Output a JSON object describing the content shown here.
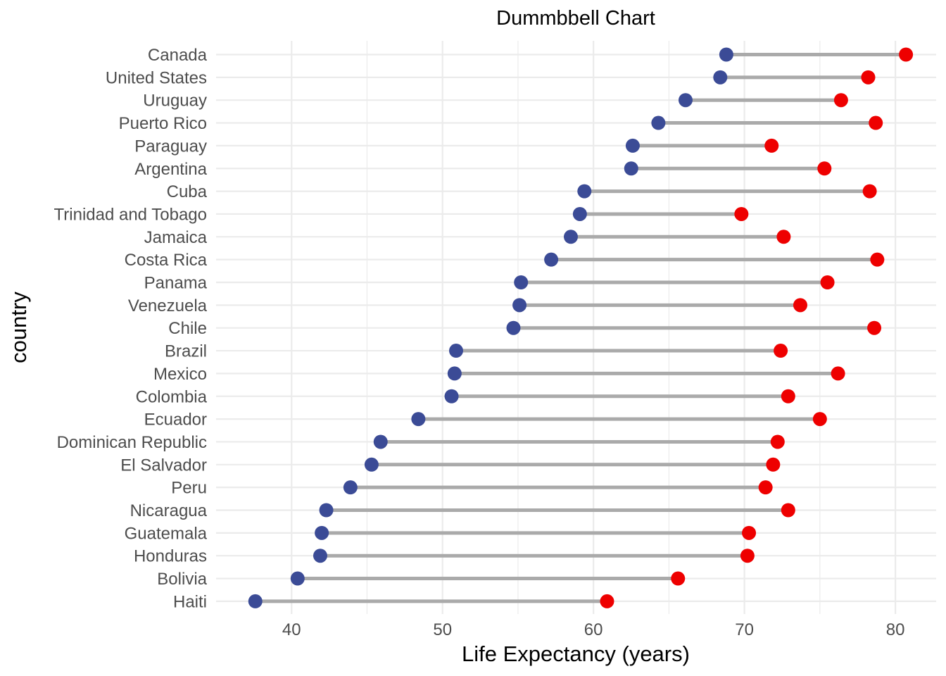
{
  "chart_data": {
    "type": "dumbbell",
    "title": "Dummbbell Chart",
    "xlabel": "Life Expectancy (years)",
    "ylabel": "country",
    "xlim": [
      35,
      82.7
    ],
    "x_ticks": [
      40,
      50,
      60,
      70,
      80
    ],
    "grid": true,
    "colors": {
      "start": "#3b4b96",
      "end": "#ee0000",
      "segment": "#aaaaaa",
      "grid": "#ebebeb"
    },
    "countries": [
      {
        "name": "Canada",
        "start": 68.8,
        "end": 80.7
      },
      {
        "name": "United States",
        "start": 68.4,
        "end": 78.2
      },
      {
        "name": "Uruguay",
        "start": 66.1,
        "end": 76.4
      },
      {
        "name": "Puerto Rico",
        "start": 64.3,
        "end": 78.7
      },
      {
        "name": "Paraguay",
        "start": 62.6,
        "end": 71.8
      },
      {
        "name": "Argentina",
        "start": 62.5,
        "end": 75.3
      },
      {
        "name": "Cuba",
        "start": 59.4,
        "end": 78.3
      },
      {
        "name": "Trinidad and Tobago",
        "start": 59.1,
        "end": 69.8
      },
      {
        "name": "Jamaica",
        "start": 58.5,
        "end": 72.6
      },
      {
        "name": "Costa Rica",
        "start": 57.2,
        "end": 78.8
      },
      {
        "name": "Panama",
        "start": 55.2,
        "end": 75.5
      },
      {
        "name": "Venezuela",
        "start": 55.1,
        "end": 73.7
      },
      {
        "name": "Chile",
        "start": 54.7,
        "end": 78.6
      },
      {
        "name": "Brazil",
        "start": 50.9,
        "end": 72.4
      },
      {
        "name": "Mexico",
        "start": 50.8,
        "end": 76.2
      },
      {
        "name": "Colombia",
        "start": 50.6,
        "end": 72.9
      },
      {
        "name": "Ecuador",
        "start": 48.4,
        "end": 75.0
      },
      {
        "name": "Dominican Republic",
        "start": 45.9,
        "end": 72.2
      },
      {
        "name": "El Salvador",
        "start": 45.3,
        "end": 71.9
      },
      {
        "name": "Peru",
        "start": 43.9,
        "end": 71.4
      },
      {
        "name": "Nicaragua",
        "start": 42.3,
        "end": 72.9
      },
      {
        "name": "Guatemala",
        "start": 42.0,
        "end": 70.3
      },
      {
        "name": "Honduras",
        "start": 41.9,
        "end": 70.2
      },
      {
        "name": "Bolivia",
        "start": 40.4,
        "end": 65.6
      },
      {
        "name": "Haiti",
        "start": 37.6,
        "end": 60.9
      }
    ]
  }
}
